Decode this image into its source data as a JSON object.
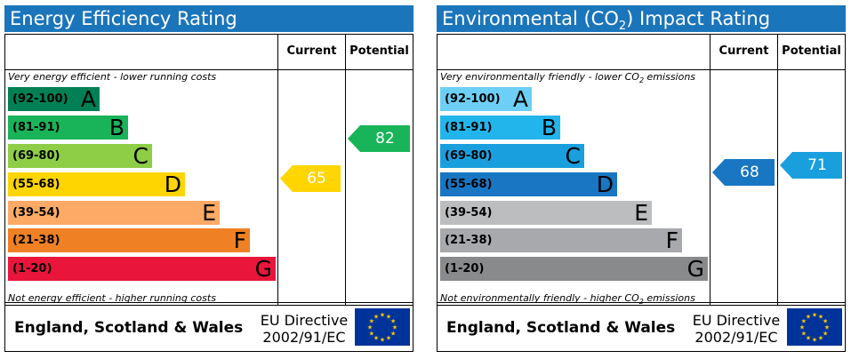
{
  "energy": {
    "title": "Energy Efficiency Rating",
    "current_header": "Current",
    "potential_header": "Potential",
    "top_note": "Very energy efficient - lower running costs",
    "bottom_note": "Not energy efficient - higher running costs",
    "bands": [
      {
        "range": "(92-100)",
        "letter": "A",
        "color": "#008054"
      },
      {
        "range": "(81-91)",
        "letter": "B",
        "color": "#19b459"
      },
      {
        "range": "(69-80)",
        "letter": "C",
        "color": "#8dce46"
      },
      {
        "range": "(55-68)",
        "letter": "D",
        "color": "#ffd500"
      },
      {
        "range": "(39-54)",
        "letter": "E",
        "color": "#fcaa65"
      },
      {
        "range": "(21-38)",
        "letter": "F",
        "color": "#ef8023"
      },
      {
        "range": "(1-20)",
        "letter": "G",
        "color": "#e9153b"
      }
    ],
    "current": {
      "value": "65",
      "color": "#ffd500"
    },
    "potential": {
      "value": "82",
      "color": "#19b459"
    },
    "footer_region": "England, Scotland & Wales",
    "directive_line1": "EU Directive",
    "directive_line2": "2002/91/EC"
  },
  "environment": {
    "title_prefix": "Environmental (CO",
    "title_sub": "2",
    "title_suffix": ") Impact Rating",
    "current_header": "Current",
    "potential_header": "Potential",
    "top_note_prefix": "Very environmentally friendly - lower CO",
    "top_note_sub": "2",
    "top_note_suffix": " emissions",
    "bottom_note_prefix": "Not environmentally friendly - higher CO",
    "bottom_note_sub": "2",
    "bottom_note_suffix": " emissions",
    "bands": [
      {
        "range": "(92-100)",
        "letter": "A",
        "color": "#6dcff6"
      },
      {
        "range": "(81-91)",
        "letter": "B",
        "color": "#22b5eb"
      },
      {
        "range": "(69-80)",
        "letter": "C",
        "color": "#1a9fde"
      },
      {
        "range": "(55-68)",
        "letter": "D",
        "color": "#1976c2"
      },
      {
        "range": "(39-54)",
        "letter": "E",
        "color": "#bbbdbf"
      },
      {
        "range": "(21-38)",
        "letter": "F",
        "color": "#a7a9ac"
      },
      {
        "range": "(1-20)",
        "letter": "G",
        "color": "#888a8c"
      }
    ],
    "current": {
      "value": "68",
      "color": "#1976c2"
    },
    "potential": {
      "value": "71",
      "color": "#1a9fde"
    },
    "footer_region": "England, Scotland & Wales",
    "directive_line1": "EU Directive",
    "directive_line2": "2002/91/EC"
  }
}
